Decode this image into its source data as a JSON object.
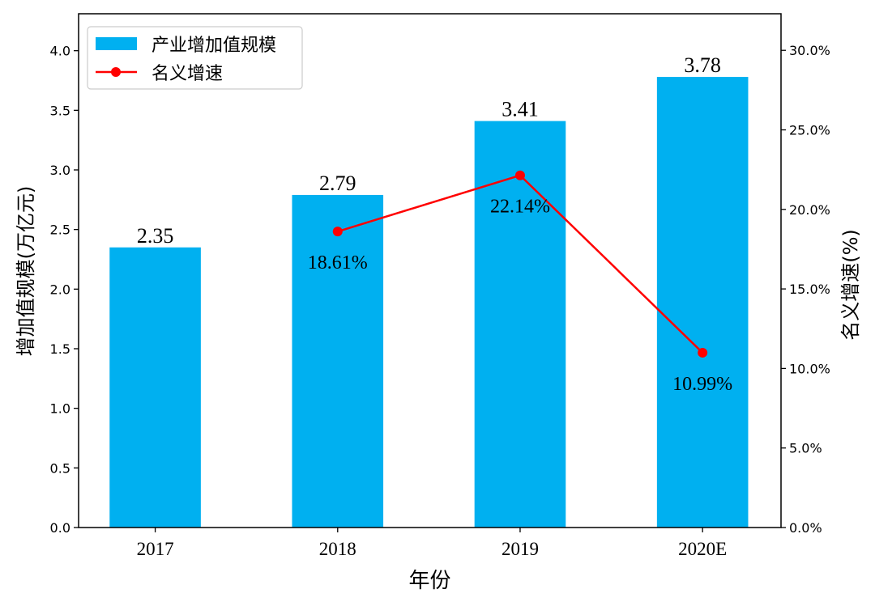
{
  "chart_data": {
    "type": "bar+line",
    "categories": [
      "2017",
      "2018",
      "2019",
      "2020E"
    ],
    "xlabel": "年份",
    "ylabel": "增加值规模(万亿元)",
    "ylabel_right": "名义增速(%)",
    "ylim": [
      0,
      4.31
    ],
    "ylim_right": [
      0,
      32.3
    ],
    "yticks": [
      0.0,
      0.5,
      1.0,
      1.5,
      2.0,
      2.5,
      3.0,
      3.5,
      4.0
    ],
    "yticks_right": [
      0,
      5,
      10,
      15,
      20,
      25,
      30
    ],
    "grid": false,
    "legend_placement": "top-left",
    "series": [
      {
        "name": "产业增加值规模",
        "type": "bar",
        "axis": "left",
        "color": "#00b0f0",
        "values": [
          2.35,
          2.79,
          3.41,
          3.78
        ],
        "labels": [
          "2.35",
          "2.79",
          "3.41",
          "3.78"
        ]
      },
      {
        "name": "名义增速",
        "type": "line",
        "axis": "right",
        "color": "#ff0000",
        "x": [
          "2018",
          "2019",
          "2020E"
        ],
        "values": [
          18.61,
          22.14,
          10.99
        ],
        "labels": [
          "18.61%",
          "22.14%",
          "10.99%"
        ]
      }
    ]
  }
}
